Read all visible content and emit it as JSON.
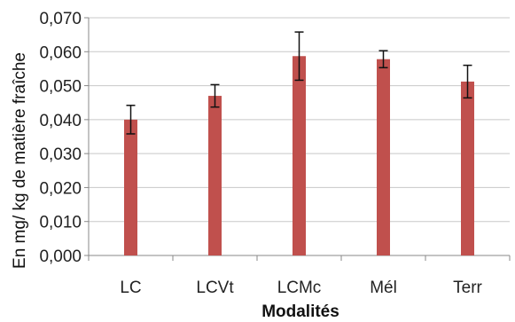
{
  "chart_data": {
    "type": "bar",
    "title": "",
    "xlabel": "Modalités",
    "ylabel": "En mg/ kg de matière fraîche",
    "categories": [
      "LC",
      "LCVt",
      "LCMc",
      "Mél",
      "Terr"
    ],
    "values": [
      0.04,
      0.047,
      0.0587,
      0.0578,
      0.0512
    ],
    "errors": [
      0.0042,
      0.0033,
      0.0071,
      0.0025,
      0.0048
    ],
    "ylim": [
      0,
      0.07
    ],
    "yticks": [
      "0,000",
      "0,010",
      "0,020",
      "0,030",
      "0,040",
      "0,050",
      "0,060",
      "0,070"
    ],
    "grid": true,
    "bar_color": "#c0504d",
    "gridline_color": "#c8c8c8",
    "legend": "none"
  }
}
